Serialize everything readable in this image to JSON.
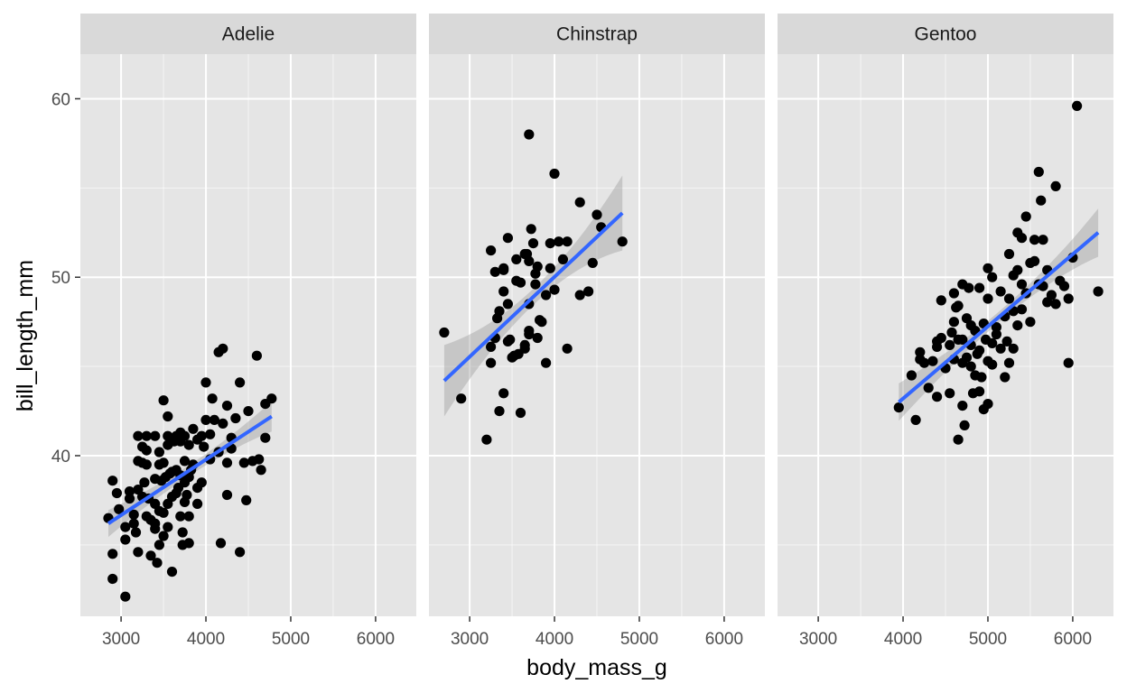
{
  "chart_data": {
    "type": "scatter",
    "xlabel": "body_mass_g",
    "ylabel": "bill_length_mm",
    "xlim": [
      2520,
      6480
    ],
    "ylim": [
      31,
      62.5
    ],
    "x_ticks": [
      3000,
      4000,
      5000,
      6000
    ],
    "y_ticks": [
      40,
      50,
      60
    ],
    "grid": true,
    "facet_by": "species",
    "colors": {
      "panel_bg": "#e5e5e5",
      "strip_bg": "#d9d9d9",
      "grid": "#ffffff",
      "point": "#000000",
      "smooth_line": "#3366ff",
      "ribbon": "#999999"
    },
    "panels": [
      {
        "label": "Adelie",
        "points": [
          [
            2850,
            36.5
          ],
          [
            2900,
            38.6
          ],
          [
            2900,
            34.5
          ],
          [
            2900,
            33.1
          ],
          [
            2950,
            37.9
          ],
          [
            2975,
            37.0
          ],
          [
            3050,
            36.0
          ],
          [
            3050,
            32.1
          ],
          [
            3050,
            35.3
          ],
          [
            3100,
            38.0
          ],
          [
            3100,
            37.6
          ],
          [
            3150,
            36.2
          ],
          [
            3150,
            36.7
          ],
          [
            3175,
            35.7
          ],
          [
            3200,
            41.1
          ],
          [
            3200,
            39.7
          ],
          [
            3200,
            38.1
          ],
          [
            3200,
            34.6
          ],
          [
            3250,
            37.7
          ],
          [
            3250,
            39.6
          ],
          [
            3250,
            40.5
          ],
          [
            3275,
            38.5
          ],
          [
            3300,
            40.3
          ],
          [
            3300,
            39.5
          ],
          [
            3300,
            41.1
          ],
          [
            3300,
            36.6
          ],
          [
            3325,
            37.6
          ],
          [
            3350,
            36.4
          ],
          [
            3350,
            34.4
          ],
          [
            3400,
            38.7
          ],
          [
            3400,
            41.1
          ],
          [
            3400,
            36.2
          ],
          [
            3400,
            37.3
          ],
          [
            3400,
            35.9
          ],
          [
            3425,
            34.0
          ],
          [
            3450,
            40.2
          ],
          [
            3450,
            39.5
          ],
          [
            3450,
            36.9
          ],
          [
            3450,
            35.0
          ],
          [
            3475,
            38.6
          ],
          [
            3500,
            43.1
          ],
          [
            3500,
            39.6
          ],
          [
            3500,
            36.8
          ],
          [
            3500,
            35.5
          ],
          [
            3525,
            38.8
          ],
          [
            3550,
            42.2
          ],
          [
            3550,
            41.1
          ],
          [
            3550,
            40.6
          ],
          [
            3550,
            37.3
          ],
          [
            3550,
            36.0
          ],
          [
            3575,
            39.0
          ],
          [
            3600,
            39.1
          ],
          [
            3600,
            37.7
          ],
          [
            3600,
            33.5
          ],
          [
            3625,
            40.8
          ],
          [
            3650,
            39.2
          ],
          [
            3650,
            41.1
          ],
          [
            3650,
            37.9
          ],
          [
            3675,
            38.2
          ],
          [
            3700,
            41.3
          ],
          [
            3700,
            40.8
          ],
          [
            3700,
            38.9
          ],
          [
            3700,
            36.6
          ],
          [
            3725,
            35.7
          ],
          [
            3725,
            35.0
          ],
          [
            3750,
            39.7
          ],
          [
            3750,
            41.1
          ],
          [
            3750,
            38.5
          ],
          [
            3750,
            37.4
          ],
          [
            3775,
            37.8
          ],
          [
            3800,
            40.6
          ],
          [
            3800,
            38.8
          ],
          [
            3800,
            36.6
          ],
          [
            3800,
            35.1
          ],
          [
            3825,
            39.2
          ],
          [
            3850,
            41.5
          ],
          [
            3850,
            39.5
          ],
          [
            3900,
            40.9
          ],
          [
            3900,
            38.2
          ],
          [
            3900,
            37.3
          ],
          [
            3950,
            41.1
          ],
          [
            3950,
            38.5
          ],
          [
            3975,
            40.5
          ],
          [
            4000,
            44.1
          ],
          [
            4000,
            42.0
          ],
          [
            4050,
            41.2
          ],
          [
            4050,
            39.8
          ],
          [
            4075,
            43.2
          ],
          [
            4100,
            42.0
          ],
          [
            4150,
            45.8
          ],
          [
            4150,
            40.2
          ],
          [
            4175,
            35.1
          ],
          [
            4200,
            46.0
          ],
          [
            4200,
            41.8
          ],
          [
            4250,
            37.8
          ],
          [
            4250,
            42.8
          ],
          [
            4250,
            39.6
          ],
          [
            4300,
            41.0
          ],
          [
            4300,
            40.4
          ],
          [
            4350,
            42.1
          ],
          [
            4400,
            34.6
          ],
          [
            4400,
            44.1
          ],
          [
            4450,
            39.6
          ],
          [
            4475,
            37.5
          ],
          [
            4500,
            42.5
          ],
          [
            4550,
            39.7
          ],
          [
            4600,
            45.6
          ],
          [
            4625,
            39.8
          ],
          [
            4650,
            39.2
          ],
          [
            4700,
            42.9
          ],
          [
            4700,
            41.0
          ],
          [
            4775,
            43.2
          ]
        ],
        "fit": {
          "x": [
            2850,
            4775
          ],
          "y": [
            36.2,
            42.2
          ],
          "se_ends": [
            0.75,
            0.85
          ],
          "se_mid": 0.3
        }
      },
      {
        "label": "Chinstrap",
        "points": [
          [
            2700,
            46.9
          ],
          [
            2900,
            43.2
          ],
          [
            3200,
            40.9
          ],
          [
            3250,
            51.5
          ],
          [
            3250,
            46.1
          ],
          [
            3250,
            45.2
          ],
          [
            3300,
            50.3
          ],
          [
            3300,
            46.6
          ],
          [
            3325,
            47.7
          ],
          [
            3350,
            42.5
          ],
          [
            3350,
            48.1
          ],
          [
            3400,
            50.4
          ],
          [
            3400,
            50.5
          ],
          [
            3400,
            49.2
          ],
          [
            3400,
            43.5
          ],
          [
            3450,
            52.2
          ],
          [
            3450,
            48.5
          ],
          [
            3450,
            46.4
          ],
          [
            3475,
            46.5
          ],
          [
            3500,
            45.5
          ],
          [
            3525,
            45.6
          ],
          [
            3550,
            51.0
          ],
          [
            3550,
            49.8
          ],
          [
            3575,
            45.7
          ],
          [
            3600,
            42.4
          ],
          [
            3600,
            49.7
          ],
          [
            3650,
            51.3
          ],
          [
            3650,
            46.0
          ],
          [
            3650,
            46.2
          ],
          [
            3675,
            51.3
          ],
          [
            3700,
            58.0
          ],
          [
            3700,
            50.9
          ],
          [
            3700,
            48.5
          ],
          [
            3700,
            47.0
          ],
          [
            3700,
            46.8
          ],
          [
            3725,
            52.7
          ],
          [
            3750,
            51.9
          ],
          [
            3775,
            50.2
          ],
          [
            3775,
            49.6
          ],
          [
            3800,
            50.6
          ],
          [
            3800,
            46.6
          ],
          [
            3825,
            47.6
          ],
          [
            3850,
            47.5
          ],
          [
            3900,
            45.2
          ],
          [
            3900,
            49.0
          ],
          [
            3950,
            51.9
          ],
          [
            3950,
            50.5
          ],
          [
            4000,
            55.8
          ],
          [
            4000,
            49.3
          ],
          [
            4050,
            52.0
          ],
          [
            4100,
            51.0
          ],
          [
            4150,
            52.0
          ],
          [
            4150,
            46.0
          ],
          [
            4300,
            54.2
          ],
          [
            4300,
            49.0
          ],
          [
            4400,
            49.2
          ],
          [
            4450,
            50.8
          ],
          [
            4500,
            53.5
          ],
          [
            4550,
            52.8
          ],
          [
            4800,
            52.0
          ]
        ],
        "fit": {
          "x": [
            2700,
            4800
          ],
          "y": [
            44.2,
            53.6
          ],
          "se_ends": [
            2.0,
            2.1
          ],
          "se_mid": 0.45
        }
      },
      {
        "label": "Gentoo",
        "points": [
          [
            3950,
            42.7
          ],
          [
            4100,
            44.5
          ],
          [
            4150,
            42.0
          ],
          [
            4200,
            45.4
          ],
          [
            4200,
            45.8
          ],
          [
            4250,
            45.2
          ],
          [
            4300,
            43.8
          ],
          [
            4350,
            45.3
          ],
          [
            4400,
            46.4
          ],
          [
            4400,
            46.1
          ],
          [
            4400,
            43.3
          ],
          [
            4450,
            48.7
          ],
          [
            4450,
            46.6
          ],
          [
            4500,
            44.9
          ],
          [
            4550,
            46.2
          ],
          [
            4550,
            43.5
          ],
          [
            4575,
            46.9
          ],
          [
            4600,
            49.1
          ],
          [
            4600,
            47.5
          ],
          [
            4600,
            45.4
          ],
          [
            4625,
            48.3
          ],
          [
            4650,
            48.4
          ],
          [
            4650,
            46.5
          ],
          [
            4650,
            40.9
          ],
          [
            4700,
            49.6
          ],
          [
            4700,
            46.5
          ],
          [
            4700,
            42.8
          ],
          [
            4700,
            45.2
          ],
          [
            4725,
            41.7
          ],
          [
            4750,
            47.7
          ],
          [
            4750,
            45.5
          ],
          [
            4775,
            49.4
          ],
          [
            4800,
            45.0
          ],
          [
            4800,
            47.3
          ],
          [
            4800,
            46.2
          ],
          [
            4825,
            43.5
          ],
          [
            4850,
            47.0
          ],
          [
            4850,
            44.5
          ],
          [
            4875,
            45.7
          ],
          [
            4900,
            49.4
          ],
          [
            4900,
            45.9
          ],
          [
            4900,
            43.6
          ],
          [
            4925,
            44.4
          ],
          [
            4950,
            42.6
          ],
          [
            4950,
            47.4
          ],
          [
            4975,
            46.5
          ],
          [
            5000,
            50.5
          ],
          [
            5000,
            48.8
          ],
          [
            5000,
            42.9
          ],
          [
            5000,
            45.3
          ],
          [
            5050,
            50.0
          ],
          [
            5050,
            46.3
          ],
          [
            5050,
            45.1
          ],
          [
            5100,
            47.2
          ],
          [
            5100,
            46.8
          ],
          [
            5150,
            49.2
          ],
          [
            5150,
            46.0
          ],
          [
            5200,
            47.8
          ],
          [
            5200,
            44.4
          ],
          [
            5225,
            46.4
          ],
          [
            5250,
            51.3
          ],
          [
            5250,
            48.8
          ],
          [
            5250,
            45.2
          ],
          [
            5300,
            50.1
          ],
          [
            5300,
            48.1
          ],
          [
            5300,
            46.0
          ],
          [
            5350,
            52.5
          ],
          [
            5350,
            50.4
          ],
          [
            5350,
            47.3
          ],
          [
            5400,
            52.2
          ],
          [
            5400,
            49.6
          ],
          [
            5400,
            48.2
          ],
          [
            5450,
            53.4
          ],
          [
            5450,
            49.1
          ],
          [
            5500,
            50.8
          ],
          [
            5500,
            47.5
          ],
          [
            5550,
            52.1
          ],
          [
            5550,
            50.9
          ],
          [
            5600,
            55.9
          ],
          [
            5600,
            49.6
          ],
          [
            5625,
            54.3
          ],
          [
            5650,
            52.1
          ],
          [
            5650,
            49.5
          ],
          [
            5700,
            50.4
          ],
          [
            5700,
            48.6
          ],
          [
            5750,
            49.0
          ],
          [
            5800,
            55.1
          ],
          [
            5800,
            48.5
          ],
          [
            5850,
            49.8
          ],
          [
            5900,
            49.5
          ],
          [
            5950,
            45.2
          ],
          [
            5950,
            48.8
          ],
          [
            6000,
            51.1
          ],
          [
            6050,
            59.6
          ],
          [
            6300,
            49.2
          ]
        ],
        "fit": {
          "x": [
            3950,
            6300
          ],
          "y": [
            43.0,
            52.5
          ],
          "se_ends": [
            1.05,
            1.35
          ],
          "se_mid": 0.3
        }
      }
    ]
  }
}
